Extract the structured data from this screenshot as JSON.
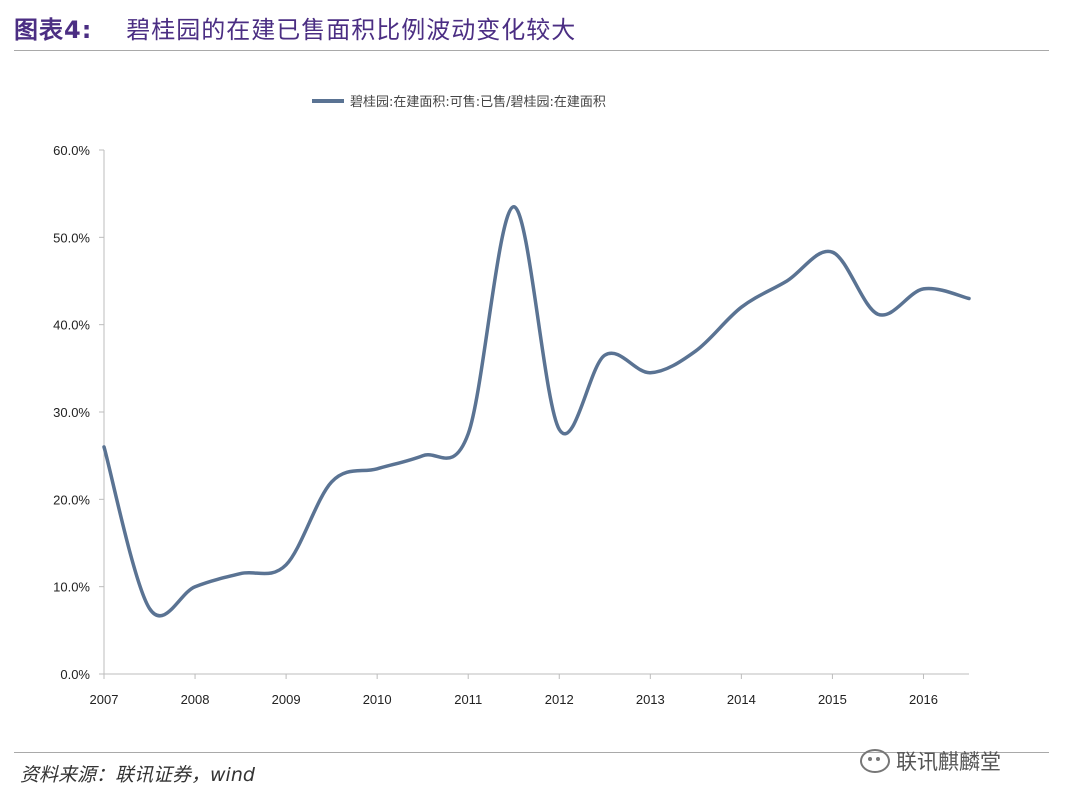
{
  "header": {
    "figure_label": "图表4:",
    "title": "碧桂园的在建已售面积比例波动变化较大"
  },
  "footer": {
    "source": "资料来源：联讯证券，wind",
    "watermark": "联讯麒麟堂",
    "watermark_icon": "wechat-icon"
  },
  "chart_data": {
    "type": "line",
    "title": "",
    "xlabel": "",
    "ylabel": "",
    "x_ticks": [
      "2007",
      "2008",
      "2009",
      "2010",
      "2011",
      "2012",
      "2013",
      "2014",
      "2015",
      "2016"
    ],
    "y_ticks": [
      "0.0%",
      "10.0%",
      "20.0%",
      "30.0%",
      "40.0%",
      "50.0%",
      "60.0%"
    ],
    "ylim": [
      0,
      60
    ],
    "xlim": [
      2007.0,
      2016.5
    ],
    "grid": false,
    "legend_position": "top-center",
    "series": [
      {
        "name": "碧桂园:在建面积:可售:已售/碧桂园:在建面积",
        "color": "#5a7393",
        "x": [
          2007.0,
          2007.5,
          2008.0,
          2008.5,
          2009.0,
          2009.5,
          2010.0,
          2010.5,
          2011.0,
          2011.5,
          2012.0,
          2012.5,
          2013.0,
          2013.5,
          2014.0,
          2014.5,
          2015.0,
          2015.5,
          2016.0,
          2016.5
        ],
        "values": [
          26.0,
          7.5,
          10.0,
          11.5,
          12.5,
          22.0,
          23.5,
          25.0,
          27.5,
          53.5,
          28.0,
          36.5,
          34.5,
          37.0,
          42.0,
          45.0,
          48.3,
          41.2,
          44.1,
          43.0
        ]
      }
    ]
  }
}
